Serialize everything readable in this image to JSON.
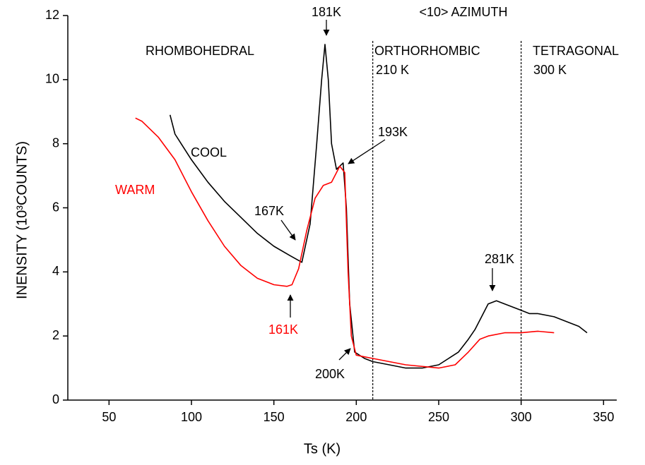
{
  "chart_data": {
    "type": "line",
    "x_label": "Ts (K)",
    "y_label": "INENSITY  (10³COUNTS)",
    "xlim": [
      25,
      358
    ],
    "ylim": [
      0,
      12
    ],
    "xticks": [
      50,
      100,
      150,
      200,
      250,
      300,
      350
    ],
    "yticks": [
      0,
      2,
      4,
      6,
      8,
      10,
      12
    ],
    "vlines": [
      210,
      300
    ],
    "series": [
      {
        "name": "COOL",
        "color": "#000000",
        "x": [
          87,
          90,
          100,
          110,
          120,
          130,
          140,
          150,
          160,
          167,
          172,
          176,
          179,
          181,
          183,
          185,
          188,
          192,
          194,
          196,
          199,
          205,
          210,
          220,
          230,
          240,
          250,
          256,
          262,
          268,
          272,
          276,
          280,
          285,
          290,
          295,
          300,
          305,
          310,
          320,
          330,
          335,
          340
        ],
        "values": [
          8.9,
          8.3,
          7.5,
          6.8,
          6.2,
          5.7,
          5.2,
          4.8,
          4.5,
          4.3,
          5.5,
          8.0,
          10.0,
          11.1,
          10.0,
          8.0,
          7.2,
          7.4,
          6.0,
          3.0,
          1.5,
          1.3,
          1.2,
          1.1,
          1.0,
          1.0,
          1.1,
          1.3,
          1.5,
          1.9,
          2.2,
          2.6,
          3.0,
          3.1,
          3.0,
          2.9,
          2.8,
          2.7,
          2.7,
          2.6,
          2.4,
          2.3,
          2.1
        ]
      },
      {
        "name": "WARM",
        "color": "#ff0000",
        "x": [
          66,
          70,
          80,
          90,
          100,
          110,
          120,
          130,
          140,
          150,
          158,
          161,
          165,
          170,
          175,
          180,
          185,
          190,
          193,
          195,
          197,
          200,
          210,
          230,
          250,
          260,
          268,
          275,
          280,
          290,
          300,
          310,
          320
        ],
        "values": [
          8.8,
          8.7,
          8.2,
          7.5,
          6.5,
          5.6,
          4.8,
          4.2,
          3.8,
          3.6,
          3.55,
          3.6,
          4.1,
          5.3,
          6.3,
          6.7,
          6.8,
          7.3,
          7.1,
          4.0,
          2.0,
          1.4,
          1.3,
          1.1,
          1.0,
          1.1,
          1.5,
          1.9,
          2.0,
          2.1,
          2.1,
          2.15,
          2.1
        ]
      }
    ],
    "annotations": [
      {
        "text": "181K",
        "color": "#000000"
      },
      {
        "text": "<10>  AZIMUTH",
        "color": "#000000"
      },
      {
        "text": "RHOMBOHEDRAL",
        "color": "#000000"
      },
      {
        "text": "ORTHORHOMBIC",
        "color": "#000000"
      },
      {
        "text": "210 K",
        "color": "#000000"
      },
      {
        "text": "TETRAGONAL",
        "color": "#000000"
      },
      {
        "text": "300 K",
        "color": "#000000"
      },
      {
        "text": "193K",
        "color": "#000000"
      },
      {
        "text": "COOL",
        "color": "#000000"
      },
      {
        "text": "WARM",
        "color": "#ff0000"
      },
      {
        "text": "167K",
        "color": "#000000"
      },
      {
        "text": "281K",
        "color": "#000000"
      },
      {
        "text": "161K",
        "color": "#ff0000"
      },
      {
        "text": "200K",
        "color": "#000000"
      }
    ]
  }
}
